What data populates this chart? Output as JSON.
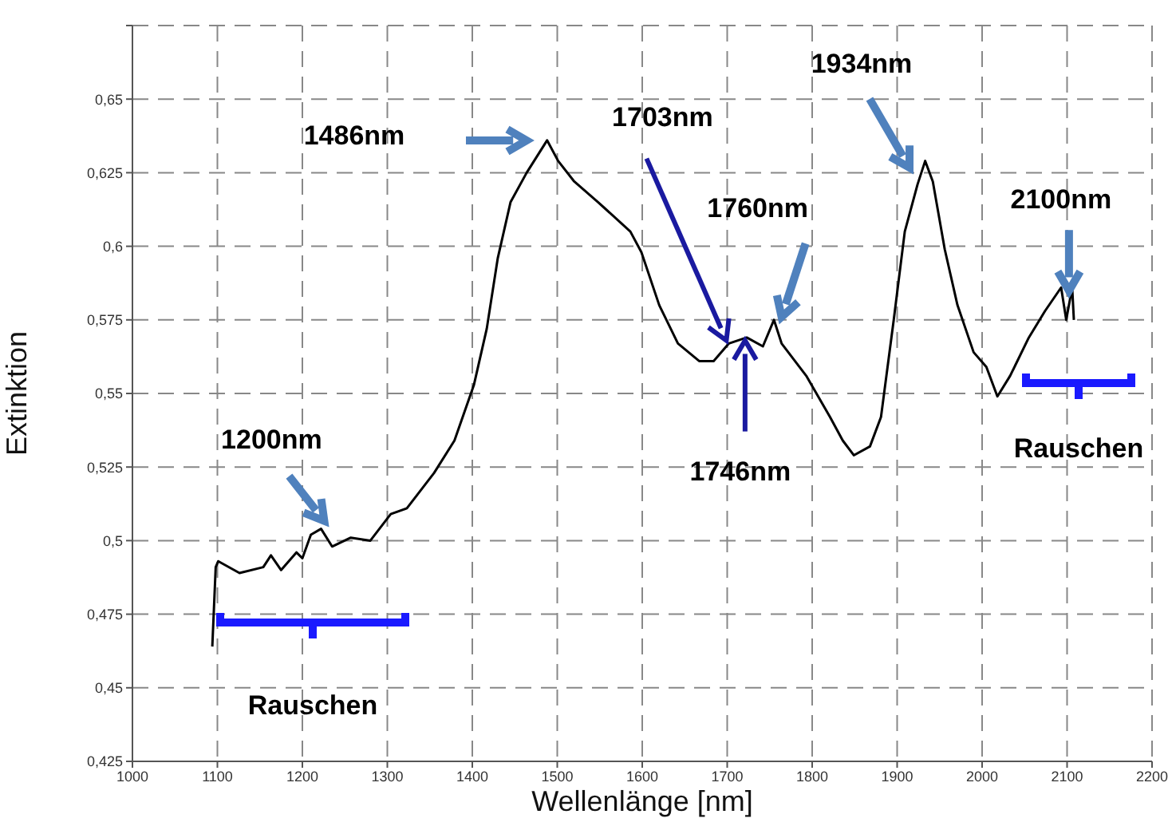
{
  "chart_data": {
    "type": "line",
    "xlabel": "Wellenlänge [nm]",
    "ylabel": "Extinktion",
    "xlim": [
      1000,
      2200
    ],
    "ylim": [
      0.425,
      0.675
    ],
    "xticks": [
      1000,
      1100,
      1200,
      1300,
      1400,
      1500,
      1600,
      1700,
      1800,
      1900,
      2000,
      2100,
      2200
    ],
    "yticks": [
      {
        "value": 0.425,
        "label": "0,425"
      },
      {
        "value": 0.45,
        "label": "0,45"
      },
      {
        "value": 0.475,
        "label": "0,475"
      },
      {
        "value": 0.5,
        "label": "0,5"
      },
      {
        "value": 0.525,
        "label": "0,525"
      },
      {
        "value": 0.55,
        "label": "0,55"
      },
      {
        "value": 0.575,
        "label": "0,575"
      },
      {
        "value": 0.6,
        "label": "0,6"
      },
      {
        "value": 0.625,
        "label": "0,625"
      },
      {
        "value": 0.65,
        "label": "0,65"
      },
      {
        "value": 0.675,
        "label": null
      }
    ],
    "grid": true,
    "marker": "none",
    "line_style": "solid",
    "series": [
      {
        "color": "#000000",
        "x": [
          1094,
          1098,
          1101,
          1126,
          1154,
          1163,
          1175,
          1193,
          1200,
          1210,
          1222,
          1235,
          1257,
          1280,
          1304,
          1323,
          1355,
          1379,
          1402,
          1417,
          1430,
          1445,
          1464,
          1488,
          1501,
          1520,
          1548,
          1586,
          1599,
          1620,
          1642,
          1667,
          1684,
          1702,
          1723,
          1742,
          1755,
          1764,
          1793,
          1821,
          1836,
          1849,
          1868,
          1881,
          1896,
          1909,
          1924,
          1933,
          1942,
          1956,
          1971,
          1990,
          2005,
          2018,
          2033,
          2055,
          2074,
          2093,
          2099,
          2106,
          2108
        ],
        "values": [
          0.464,
          0.491,
          0.493,
          0.489,
          0.491,
          0.495,
          0.49,
          0.496,
          0.494,
          0.502,
          0.504,
          0.498,
          0.501,
          0.5,
          0.509,
          0.511,
          0.523,
          0.534,
          0.553,
          0.572,
          0.596,
          0.615,
          0.625,
          0.636,
          0.629,
          0.622,
          0.615,
          0.605,
          0.598,
          0.58,
          0.567,
          0.561,
          0.561,
          0.567,
          0.569,
          0.566,
          0.575,
          0.567,
          0.556,
          0.542,
          0.534,
          0.529,
          0.532,
          0.542,
          0.575,
          0.605,
          0.621,
          0.629,
          0.622,
          0.599,
          0.58,
          0.564,
          0.559,
          0.549,
          0.556,
          0.569,
          0.578,
          0.586,
          0.575,
          0.586,
          0.575
        ]
      }
    ],
    "annotations": [
      {
        "text": "1200nm",
        "x": 1222,
        "y": 0.504
      },
      "1486nm",
      {
        "text": "1703nm",
        "x": 1699,
        "y": 0.568
      },
      {
        "text": "1760nm",
        "x": 1764,
        "y": 0.576
      },
      "1934nm",
      {
        "text": "2100nm",
        "x": 2106,
        "y": 0.586
      },
      {
        "text": "1746nm",
        "x": 1721,
        "y": 0.568
      },
      "Rauschen",
      "Rauschen"
    ]
  }
}
